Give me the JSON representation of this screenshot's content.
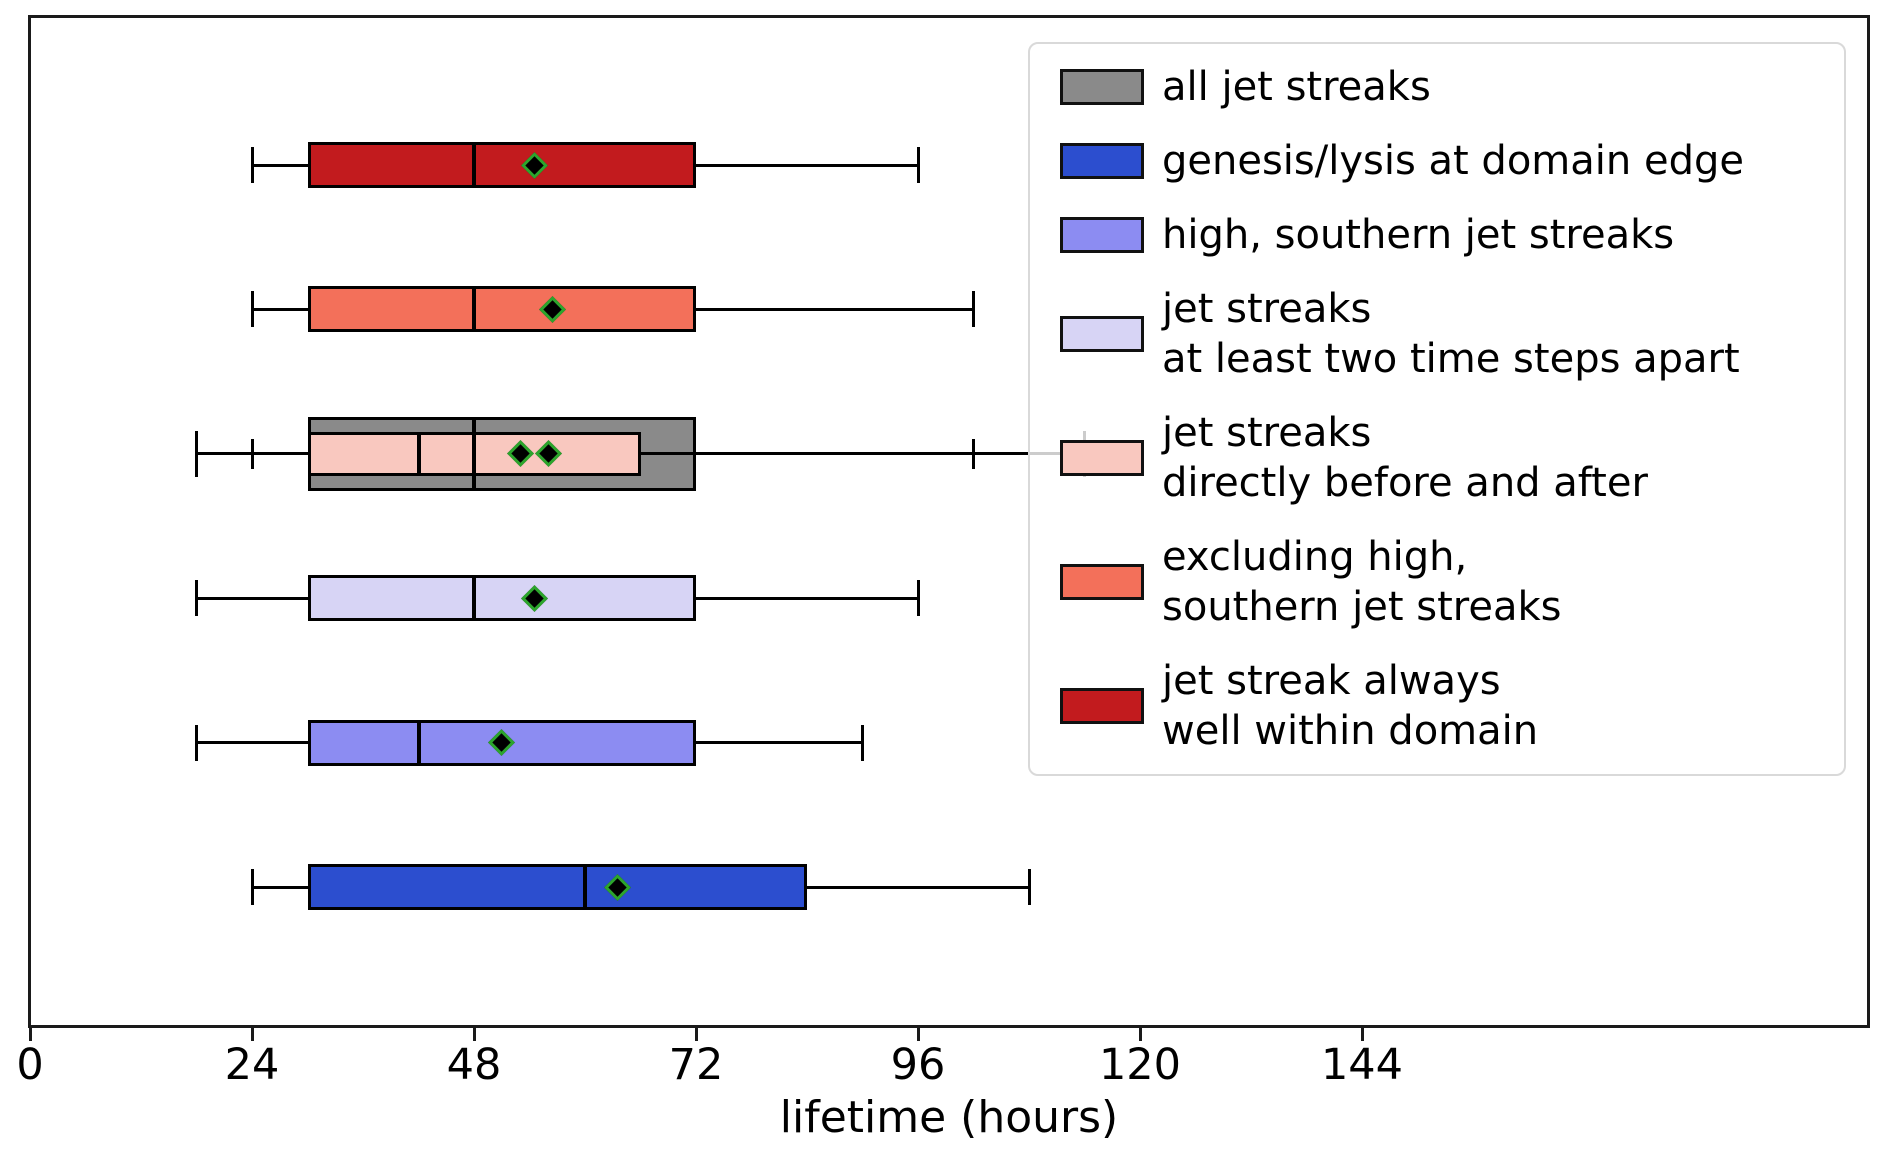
{
  "chart_data": {
    "type": "boxplot",
    "orientation": "horizontal",
    "title": "",
    "xlabel": "lifetime (hours)",
    "x_ticks": [
      0,
      24,
      48,
      72,
      96,
      120,
      144
    ],
    "xlim": [
      0,
      199
    ],
    "grid": false,
    "legend_position": "upper right",
    "mean_marker": {
      "shape": "diamond",
      "fill_color": "#000000",
      "edge_color": "#2ca52c"
    },
    "rows": [
      {
        "row": 1,
        "series": "jet streak always well within domain",
        "color": "#c21b1e",
        "whisker_low": 24,
        "q1": 30,
        "median": 48,
        "q3": 72,
        "whisker_high": 96,
        "mean": 54.5,
        "size": "normal"
      },
      {
        "row": 2,
        "series": "excluding high, southern jet streaks",
        "color": "#f3705a",
        "whisker_low": 24,
        "q1": 30,
        "median": 48,
        "q3": 72,
        "whisker_high": 102,
        "mean": 56.5,
        "size": "normal"
      },
      {
        "row": 3,
        "series": "all jet streaks",
        "color": "#8a8a8a",
        "whisker_low": 18,
        "q1": 30,
        "median": 48,
        "q3": 72,
        "whisker_high": 114,
        "mean": 56,
        "size": "tall",
        "median_on_top": true
      },
      {
        "row": 3,
        "series": "jet streaks directly before and after",
        "color": "#f9c8bf",
        "whisker_low": 24,
        "q1": 30,
        "median": 42,
        "q3": 66,
        "whisker_high": 102,
        "mean": 53,
        "size": "slim"
      },
      {
        "row": 4,
        "series": "jet streaks at least two time steps apart",
        "color": "#d7d4f5",
        "whisker_low": 18,
        "q1": 30,
        "median": 48,
        "q3": 72,
        "whisker_high": 96,
        "mean": 54.5,
        "size": "normal"
      },
      {
        "row": 5,
        "series": "high, southern jet streaks",
        "color": "#8c8cf2",
        "whisker_low": 18,
        "q1": 30,
        "median": 42,
        "q3": 72,
        "whisker_high": 90,
        "mean": 51,
        "size": "normal"
      },
      {
        "row": 6,
        "series": "genesis/lysis at domain edge",
        "color": "#2c4ecf",
        "whisker_low": 24,
        "q1": 30,
        "median": 60,
        "q3": 84,
        "whisker_high": 108,
        "mean": 63.5,
        "size": "normal"
      }
    ],
    "legend": [
      {
        "color": "#8a8a8a",
        "lines": [
          "all jet streaks"
        ]
      },
      {
        "color": "#2c4ecf",
        "lines": [
          "genesis/lysis at domain edge"
        ]
      },
      {
        "color": "#8c8cf2",
        "lines": [
          "high, southern jet streaks"
        ]
      },
      {
        "color": "#d7d4f5",
        "lines": [
          "jet streaks",
          "at least two time steps apart"
        ]
      },
      {
        "color": "#f9c8bf",
        "lines": [
          "jet streaks",
          "directly before and after"
        ]
      },
      {
        "color": "#f3705a",
        "lines": [
          "excluding high,",
          "southern jet streaks"
        ]
      },
      {
        "color": "#c21b1e",
        "lines": [
          "jet streak always",
          "well within domain"
        ]
      }
    ]
  }
}
